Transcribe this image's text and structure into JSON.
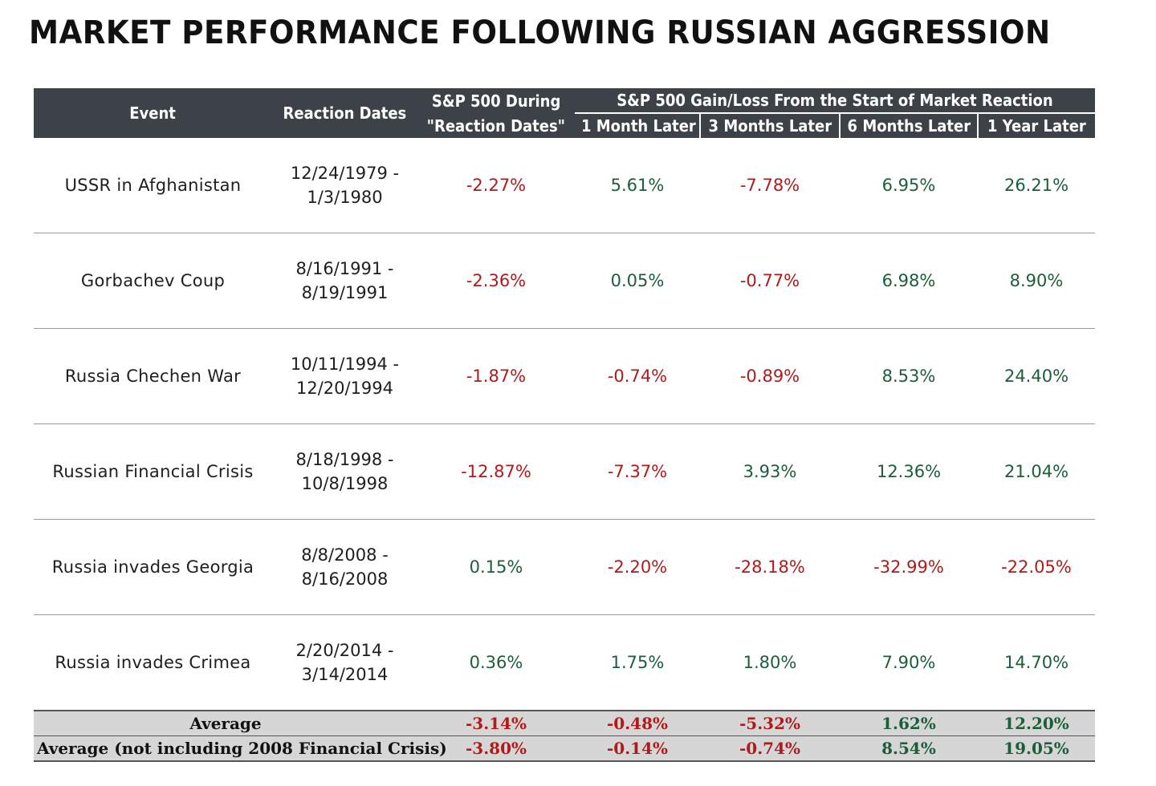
{
  "title": "MARKET PERFORMANCE FOLLOWING RUSSIAN AGGRESSION",
  "header": {
    "event": "Event",
    "reaction_dates": "Reaction Dates",
    "during_line1": "S&P 500 During",
    "during_line2": "\"Reaction Dates\"",
    "group": "S&P 500 Gain/Loss From the Start of Market Reaction",
    "m1": "1 Month Later",
    "m3": "3 Months Later",
    "m6": "6 Months Later",
    "y1": "1 Year Later"
  },
  "rows": [
    {
      "event": "USSR in Afghanistan",
      "date_start": "12/24/1979 -",
      "date_end": "1/3/1980",
      "during": "-2.27%",
      "m1": "5.61%",
      "m3": "-7.78%",
      "m6": "6.95%",
      "y1": "26.21%"
    },
    {
      "event": "Gorbachev Coup",
      "date_start": "8/16/1991 -",
      "date_end": "8/19/1991",
      "during": "-2.36%",
      "m1": "0.05%",
      "m3": "-0.77%",
      "m6": "6.98%",
      "y1": "8.90%"
    },
    {
      "event": "Russia Chechen War",
      "date_start": "10/11/1994 -",
      "date_end": "12/20/1994",
      "during": "-1.87%",
      "m1": "-0.74%",
      "m3": "-0.89%",
      "m6": "8.53%",
      "y1": "24.40%"
    },
    {
      "event": "Russian Financial Crisis",
      "date_start": "8/18/1998 -",
      "date_end": "10/8/1998",
      "during": "-12.87%",
      "m1": "-7.37%",
      "m3": "3.93%",
      "m6": "12.36%",
      "y1": "21.04%"
    },
    {
      "event": "Russia invades Georgia",
      "date_start": "8/8/2008 -",
      "date_end": "8/16/2008",
      "during": "0.15%",
      "m1": "-2.20%",
      "m3": "-28.18%",
      "m6": "-32.99%",
      "y1": "-22.05%"
    },
    {
      "event": "Russia invades Crimea",
      "date_start": "2/20/2014 -",
      "date_end": "3/14/2014",
      "during": "0.36%",
      "m1": "1.75%",
      "m3": "1.80%",
      "m6": "7.90%",
      "y1": "14.70%"
    }
  ],
  "averages": [
    {
      "label": "Average",
      "during": "-3.14%",
      "m1": "-0.48%",
      "m3": "-5.32%",
      "m6": "1.62%",
      "y1": "12.20%"
    },
    {
      "label": "Average (not including 2008 Financial Crisis)",
      "during": "-3.80%",
      "m1": "-0.14%",
      "m3": "-0.74%",
      "m6": "8.54%",
      "y1": "19.05%"
    }
  ],
  "colors": {
    "negative": "#b01a1a",
    "positive": "#1b5e38",
    "header_bg": "#3c4248",
    "average_bg": "#d6d6d6"
  }
}
